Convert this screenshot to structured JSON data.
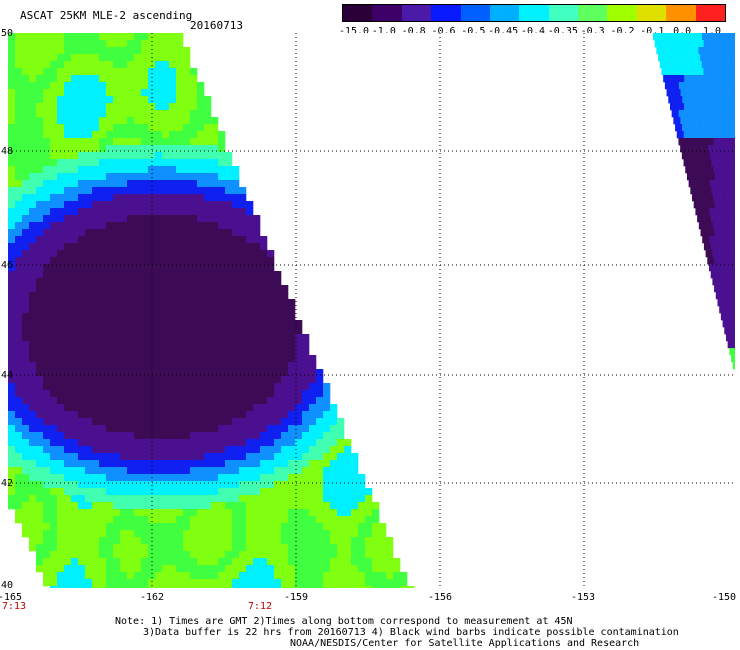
{
  "header": {
    "title": "ASCAT 25KM MLE-2 ascending",
    "date": "20160713"
  },
  "colorbar": {
    "labels": [
      "-15.0",
      "-1.0",
      "-0.8",
      "-0.6",
      "-0.5",
      "-0.45",
      "-0.4",
      "-0.35",
      "-0.3",
      "-0.2",
      "-0.1",
      "0.0",
      "1.0"
    ],
    "colors": [
      "#2a0038",
      "#3c0068",
      "#4b1aa8",
      "#0a1aff",
      "#0060ff",
      "#00b0ff",
      "#00f0ff",
      "#40ffc0",
      "#60ff60",
      "#a0ff00",
      "#e0e000",
      "#ff9000",
      "#ff2020"
    ]
  },
  "axes": {
    "lon_labels": [
      "-165",
      "-162",
      "-159",
      "-156",
      "-153",
      "-150"
    ],
    "lat_labels": [
      "50",
      "48",
      "46",
      "44",
      "42",
      "40"
    ]
  },
  "times": [
    "7:13",
    "7:12"
  ],
  "notes": [
    "Note: 1) Times are GMT 2)Times along bottom correspond to measurement at 45N",
    "3)Data buffer is 22 hrs from 20160713 4) Black wind barbs indicate possible contamination",
    "NOAA/NESDIS/Center for Satellite Applications and Research"
  ],
  "map_colors": {
    "deep": "#3d0a55",
    "purple": "#4a1090",
    "blue": "#1020f0",
    "lightblue": "#1090ff",
    "cyan": "#00f0ff",
    "teal": "#40ffb0",
    "green": "#40ff40",
    "lime": "#80ff10"
  }
}
